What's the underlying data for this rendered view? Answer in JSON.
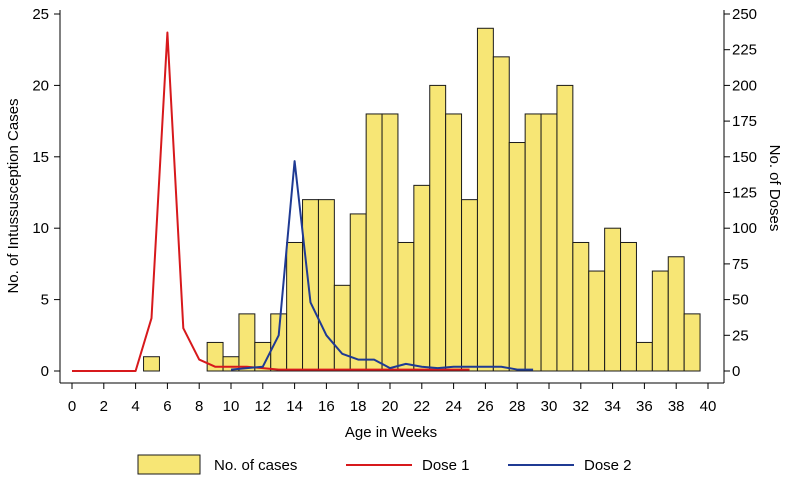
{
  "chart_data": {
    "type": "bar+line",
    "xlabel": "Age in Weeks",
    "ylabel_left": "No. of Intussusception Cases",
    "ylabel_right": "No. of Doses",
    "x_ticks": [
      "0",
      "2",
      "4",
      "6",
      "8",
      "10",
      "12",
      "14",
      "16",
      "18",
      "20",
      "22",
      "24",
      "26",
      "28",
      "30",
      "32",
      "34",
      "36",
      "38",
      "40"
    ],
    "y_left_ticks": [
      "0",
      "5",
      "10",
      "15",
      "20",
      "25"
    ],
    "y_right_ticks": [
      "0",
      "25",
      "50",
      "75",
      "100",
      "125",
      "150",
      "175",
      "200",
      "225",
      "250"
    ],
    "xlim": [
      0,
      40
    ],
    "ylim_left": [
      0,
      25
    ],
    "ylim_right": [
      0,
      250
    ],
    "bars": {
      "name": "No. of cases",
      "weeks": [
        5,
        9,
        10,
        11,
        12,
        13,
        14,
        15,
        16,
        17,
        18,
        19,
        20,
        21,
        22,
        23,
        24,
        25,
        26,
        27,
        28,
        29,
        30,
        31,
        32,
        33,
        34,
        35,
        36,
        37,
        38,
        39
      ],
      "values": [
        1,
        2,
        1,
        4,
        2,
        4,
        9,
        12,
        12,
        6,
        11,
        18,
        18,
        9,
        13,
        20,
        18,
        12,
        24,
        22,
        16,
        18,
        18,
        20,
        9,
        7,
        10,
        9,
        2,
        7,
        8,
        4
      ]
    },
    "series": [
      {
        "name": "Dose 1",
        "x": [
          0,
          1,
          2,
          3,
          4,
          5,
          6,
          7,
          8,
          9,
          10,
          11,
          12,
          13,
          14,
          15,
          16,
          17,
          18,
          19,
          20,
          21,
          22,
          23,
          24,
          25
        ],
        "values": [
          0,
          0,
          0,
          0,
          0,
          37,
          237,
          30,
          8,
          3,
          3,
          3,
          2,
          1,
          1,
          1,
          1,
          1,
          1,
          1,
          1,
          1,
          1,
          1,
          1,
          1
        ]
      },
      {
        "name": "Dose 2",
        "x": [
          10,
          11,
          12,
          13,
          14,
          15,
          16,
          17,
          18,
          19,
          20,
          21,
          22,
          23,
          24,
          25,
          26,
          27,
          28,
          29
        ],
        "values": [
          1,
          2,
          3,
          25,
          147,
          48,
          25,
          12,
          8,
          8,
          2,
          5,
          3,
          2,
          3,
          3,
          3,
          3,
          1,
          1
        ]
      }
    ],
    "legend": {
      "cases_label": "No. of cases",
      "dose1_label": "Dose 1",
      "dose2_label": "Dose 2"
    },
    "colors": {
      "bar_fill": "#F7E675",
      "bar_stroke": "#1a1a1a",
      "dose1": "#D7191C",
      "dose2": "#1F3A93"
    }
  }
}
